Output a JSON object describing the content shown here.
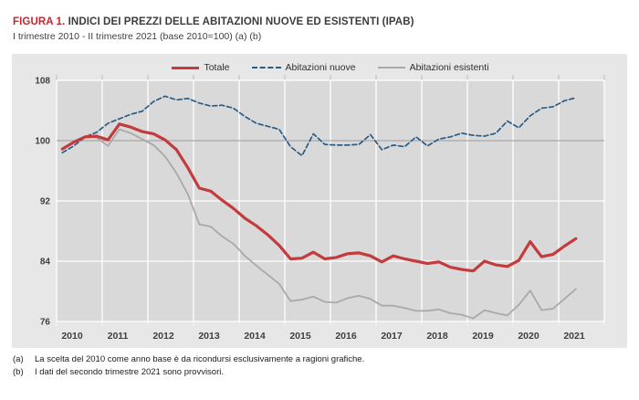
{
  "figure": {
    "label": "FIGURA 1.",
    "title": " INDICI DEI PREZZI DELLE ABITAZIONI NUOVE ED ESISTENTI (IPAB)",
    "subtitle": "I trimestre 2010 - II trimestre 2021 (base 2010=100) (a) (b)"
  },
  "footnotes": [
    {
      "label": "(a)",
      "text": "La scelta del 2010 come anno base è da ricondursi esclusivamente a ragioni grafiche."
    },
    {
      "label": "(b)",
      "text": "I dati del secondo trimestre 2021 sono provvisori."
    }
  ],
  "chart_data": {
    "type": "line",
    "x_unit": "quarter",
    "x_start": "2010-Q1",
    "x_end": "2021-Q2",
    "years": [
      "2010",
      "2011",
      "2012",
      "2013",
      "2014",
      "2015",
      "2016",
      "2017",
      "2018",
      "2019",
      "2020",
      "2021"
    ],
    "yticks": [
      108,
      100,
      92,
      84,
      76
    ],
    "ylim": [
      76,
      108
    ],
    "reference_line": 100,
    "grid": true,
    "legend_position": "top-center",
    "plot_bg": "#d9d9d9",
    "grid_color": "#ffffff",
    "reference_line_color": "#9b9b9b",
    "axis_label_color": "#3f3f3f",
    "series": [
      {
        "name": "Totale",
        "color": "#c43b3e",
        "dash": null,
        "width": 3.2,
        "values": [
          98.9,
          99.8,
          100.5,
          100.6,
          100.1,
          102.2,
          101.8,
          101.2,
          100.9,
          100.1,
          98.8,
          96.4,
          93.7,
          93.3,
          92.1,
          91.0,
          89.7,
          88.7,
          87.5,
          86.1,
          84.3,
          84.4,
          85.2,
          84.3,
          84.5,
          85.0,
          85.1,
          84.7,
          83.9,
          84.7,
          84.3,
          84.0,
          83.7,
          83.9,
          83.2,
          82.9,
          82.7,
          84.0,
          83.5,
          83.3,
          84.1,
          86.6,
          84.6,
          84.9,
          86.0,
          87.0
        ]
      },
      {
        "name": "Abitazioni nuove",
        "color": "#2a5d85",
        "dash": "5,3",
        "width": 1.7,
        "values": [
          98.4,
          99.3,
          100.5,
          101.1,
          102.3,
          102.9,
          103.5,
          103.9,
          105.2,
          105.9,
          105.4,
          105.6,
          105.0,
          104.6,
          104.7,
          104.3,
          103.2,
          102.3,
          101.9,
          101.5,
          99.2,
          98.0,
          100.9,
          99.5,
          99.4,
          99.4,
          99.5,
          100.8,
          98.8,
          99.4,
          99.2,
          100.5,
          99.3,
          100.2,
          100.5,
          101.0,
          100.7,
          100.6,
          101.0,
          102.6,
          101.7,
          103.3,
          104.3,
          104.5,
          105.3,
          105.7
        ]
      },
      {
        "name": "Abitazioni esistenti",
        "color": "#a9a9a9",
        "dash": null,
        "width": 1.8,
        "values": [
          98.9,
          99.9,
          100.6,
          100.4,
          99.3,
          101.5,
          101.0,
          100.2,
          99.4,
          97.9,
          95.7,
          92.9,
          88.9,
          88.6,
          87.3,
          86.3,
          84.7,
          83.4,
          82.2,
          81.0,
          78.7,
          78.9,
          79.3,
          78.6,
          78.5,
          79.1,
          79.4,
          79.0,
          78.1,
          78.1,
          77.8,
          77.4,
          77.4,
          77.6,
          77.1,
          76.9,
          76.4,
          77.5,
          77.1,
          76.8,
          78.2,
          80.1,
          77.5,
          77.7,
          79.0,
          80.3
        ]
      }
    ]
  }
}
